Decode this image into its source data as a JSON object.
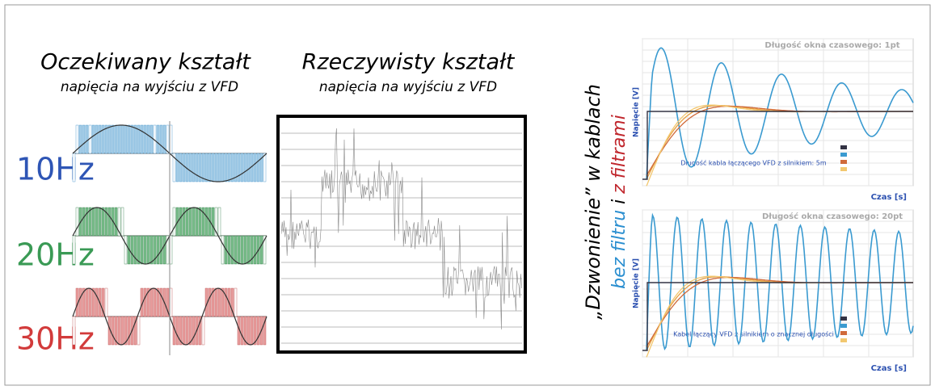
{
  "left": {
    "title": "Oczekiwany kształt",
    "subtitle": "napięcia na wyjściu z VFD",
    "rows": [
      "10Hz",
      "20Hz",
      "30Hz"
    ]
  },
  "middle": {
    "title": "Rzeczywisty kształt",
    "subtitle": "napięcia na wyjściu z VFD"
  },
  "right": {
    "heading": "„Dzwonienie” w kablach",
    "subheading": {
      "part1": "bez filtru",
      "part2": "i",
      "part3": "z filtrami"
    },
    "charts": [
      {
        "title": "Długość okna czasowego: 1pt",
        "y_label": "Napięcie [V]",
        "x_label": "Czas [s]",
        "note": "Długość kabla łączącego VFD z silnikiem: 5m"
      },
      {
        "title": "Długość okna czasowego: 20pt",
        "y_label": "Napięcie [V]",
        "x_label": "Czas [s]",
        "note": "Kabel łączący VFD z silnikiem o znacznej długości"
      }
    ]
  }
}
